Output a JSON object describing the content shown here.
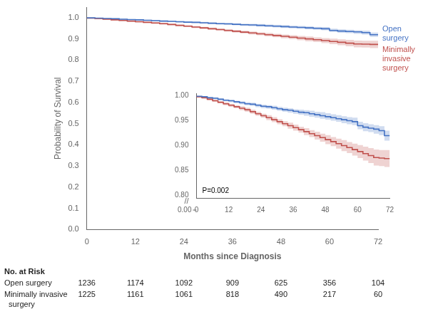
{
  "chart_data": {
    "type": "step",
    "xlabel": "Months since Diagnosis",
    "ylabel": "Probability of Survival",
    "x": [
      0,
      2,
      4,
      6,
      8,
      10,
      12,
      14,
      16,
      18,
      20,
      22,
      24,
      26,
      28,
      30,
      32,
      34,
      36,
      38,
      40,
      42,
      44,
      46,
      48,
      50,
      52,
      54,
      56,
      58,
      60,
      62,
      64,
      66,
      68,
      70,
      72
    ],
    "series": [
      {
        "name": "Open\nsurgery",
        "color": "#4472C4",
        "values": [
          1.0,
          0.999,
          0.998,
          0.996,
          0.995,
          0.993,
          0.991,
          0.99,
          0.988,
          0.986,
          0.984,
          0.983,
          0.981,
          0.979,
          0.978,
          0.976,
          0.974,
          0.972,
          0.971,
          0.969,
          0.967,
          0.966,
          0.964,
          0.962,
          0.96,
          0.958,
          0.956,
          0.954,
          0.952,
          0.95,
          0.948,
          0.94,
          0.937,
          0.935,
          0.933,
          0.93,
          0.92
        ],
        "ci_lower": [
          1.0,
          0.998,
          0.997,
          0.994,
          0.993,
          0.991,
          0.989,
          0.987,
          0.985,
          0.983,
          0.981,
          0.98,
          0.977,
          0.975,
          0.974,
          0.972,
          0.97,
          0.968,
          0.966,
          0.964,
          0.962,
          0.96,
          0.958,
          0.956,
          0.954,
          0.952,
          0.95,
          0.948,
          0.945,
          0.943,
          0.941,
          0.933,
          0.929,
          0.927,
          0.924,
          0.921,
          0.91
        ],
        "ci_upper": [
          1.0,
          1.0,
          0.999,
          0.998,
          0.997,
          0.995,
          0.993,
          0.992,
          0.99,
          0.989,
          0.987,
          0.986,
          0.984,
          0.982,
          0.981,
          0.98,
          0.978,
          0.976,
          0.975,
          0.973,
          0.972,
          0.971,
          0.97,
          0.968,
          0.967,
          0.965,
          0.963,
          0.961,
          0.959,
          0.957,
          0.956,
          0.948,
          0.945,
          0.943,
          0.941,
          0.939,
          0.93
        ]
      },
      {
        "name": "Minimally\ninvasive\nsurgery",
        "color": "#C0504D",
        "values": [
          1.0,
          0.998,
          0.996,
          0.993,
          0.99,
          0.987,
          0.984,
          0.981,
          0.978,
          0.975,
          0.972,
          0.968,
          0.964,
          0.96,
          0.956,
          0.952,
          0.948,
          0.944,
          0.94,
          0.936,
          0.932,
          0.928,
          0.924,
          0.92,
          0.916,
          0.912,
          0.908,
          0.904,
          0.9,
          0.896,
          0.892,
          0.888,
          0.884,
          0.88,
          0.876,
          0.875,
          0.874
        ],
        "ci_lower": [
          1.0,
          0.997,
          0.994,
          0.991,
          0.988,
          0.985,
          0.981,
          0.978,
          0.975,
          0.971,
          0.968,
          0.964,
          0.96,
          0.956,
          0.951,
          0.947,
          0.943,
          0.939,
          0.934,
          0.93,
          0.926,
          0.921,
          0.917,
          0.912,
          0.908,
          0.903,
          0.899,
          0.894,
          0.889,
          0.885,
          0.88,
          0.875,
          0.87,
          0.865,
          0.86,
          0.859,
          0.857
        ],
        "ci_upper": [
          1.0,
          0.999,
          0.998,
          0.995,
          0.992,
          0.989,
          0.987,
          0.984,
          0.981,
          0.979,
          0.976,
          0.972,
          0.968,
          0.964,
          0.961,
          0.957,
          0.953,
          0.949,
          0.946,
          0.942,
          0.938,
          0.935,
          0.931,
          0.928,
          0.924,
          0.921,
          0.917,
          0.914,
          0.911,
          0.907,
          0.904,
          0.901,
          0.898,
          0.895,
          0.892,
          0.891,
          0.891
        ]
      }
    ],
    "xlim": [
      0,
      72
    ],
    "ylim": [
      0.0,
      1.05
    ],
    "xticks": [
      0,
      12,
      24,
      36,
      48,
      60,
      72
    ],
    "yticks": [
      {
        "value": 0.0,
        "label": "0.0"
      },
      0.1,
      0.2,
      0.3,
      0.4,
      0.5,
      0.6,
      0.7,
      0.8,
      0.9,
      {
        "value": 1.0,
        "label": "1.0"
      }
    ],
    "grid": false,
    "inset": {
      "xlim": [
        0,
        72
      ],
      "ylim": [
        0.795,
        1.005
      ],
      "xticks": [
        0,
        12,
        24,
        36,
        48,
        60,
        72
      ],
      "yticks": [
        {
          "value": 0.8,
          "label": "0.80"
        },
        0.85,
        {
          "value": 0.9,
          "label": "0.90"
        },
        0.95,
        {
          "value": 1.0,
          "label": "1.00"
        }
      ],
      "grid": false,
      "annotation": "P=0.002",
      "axis_break_label": "0.00",
      "axis_break_mark": "//"
    },
    "risk_table": {
      "title": "No. at Risk",
      "x": [
        0,
        12,
        24,
        36,
        48,
        60,
        72
      ],
      "rows": [
        {
          "label": [
            "Open surgery"
          ],
          "values": [
            1236,
            1174,
            1092,
            909,
            625,
            356,
            104
          ]
        },
        {
          "label": [
            "Minimally invasive",
            "  surgery"
          ],
          "values": [
            1225,
            1161,
            1061,
            818,
            490,
            217,
            60
          ]
        }
      ]
    }
  }
}
